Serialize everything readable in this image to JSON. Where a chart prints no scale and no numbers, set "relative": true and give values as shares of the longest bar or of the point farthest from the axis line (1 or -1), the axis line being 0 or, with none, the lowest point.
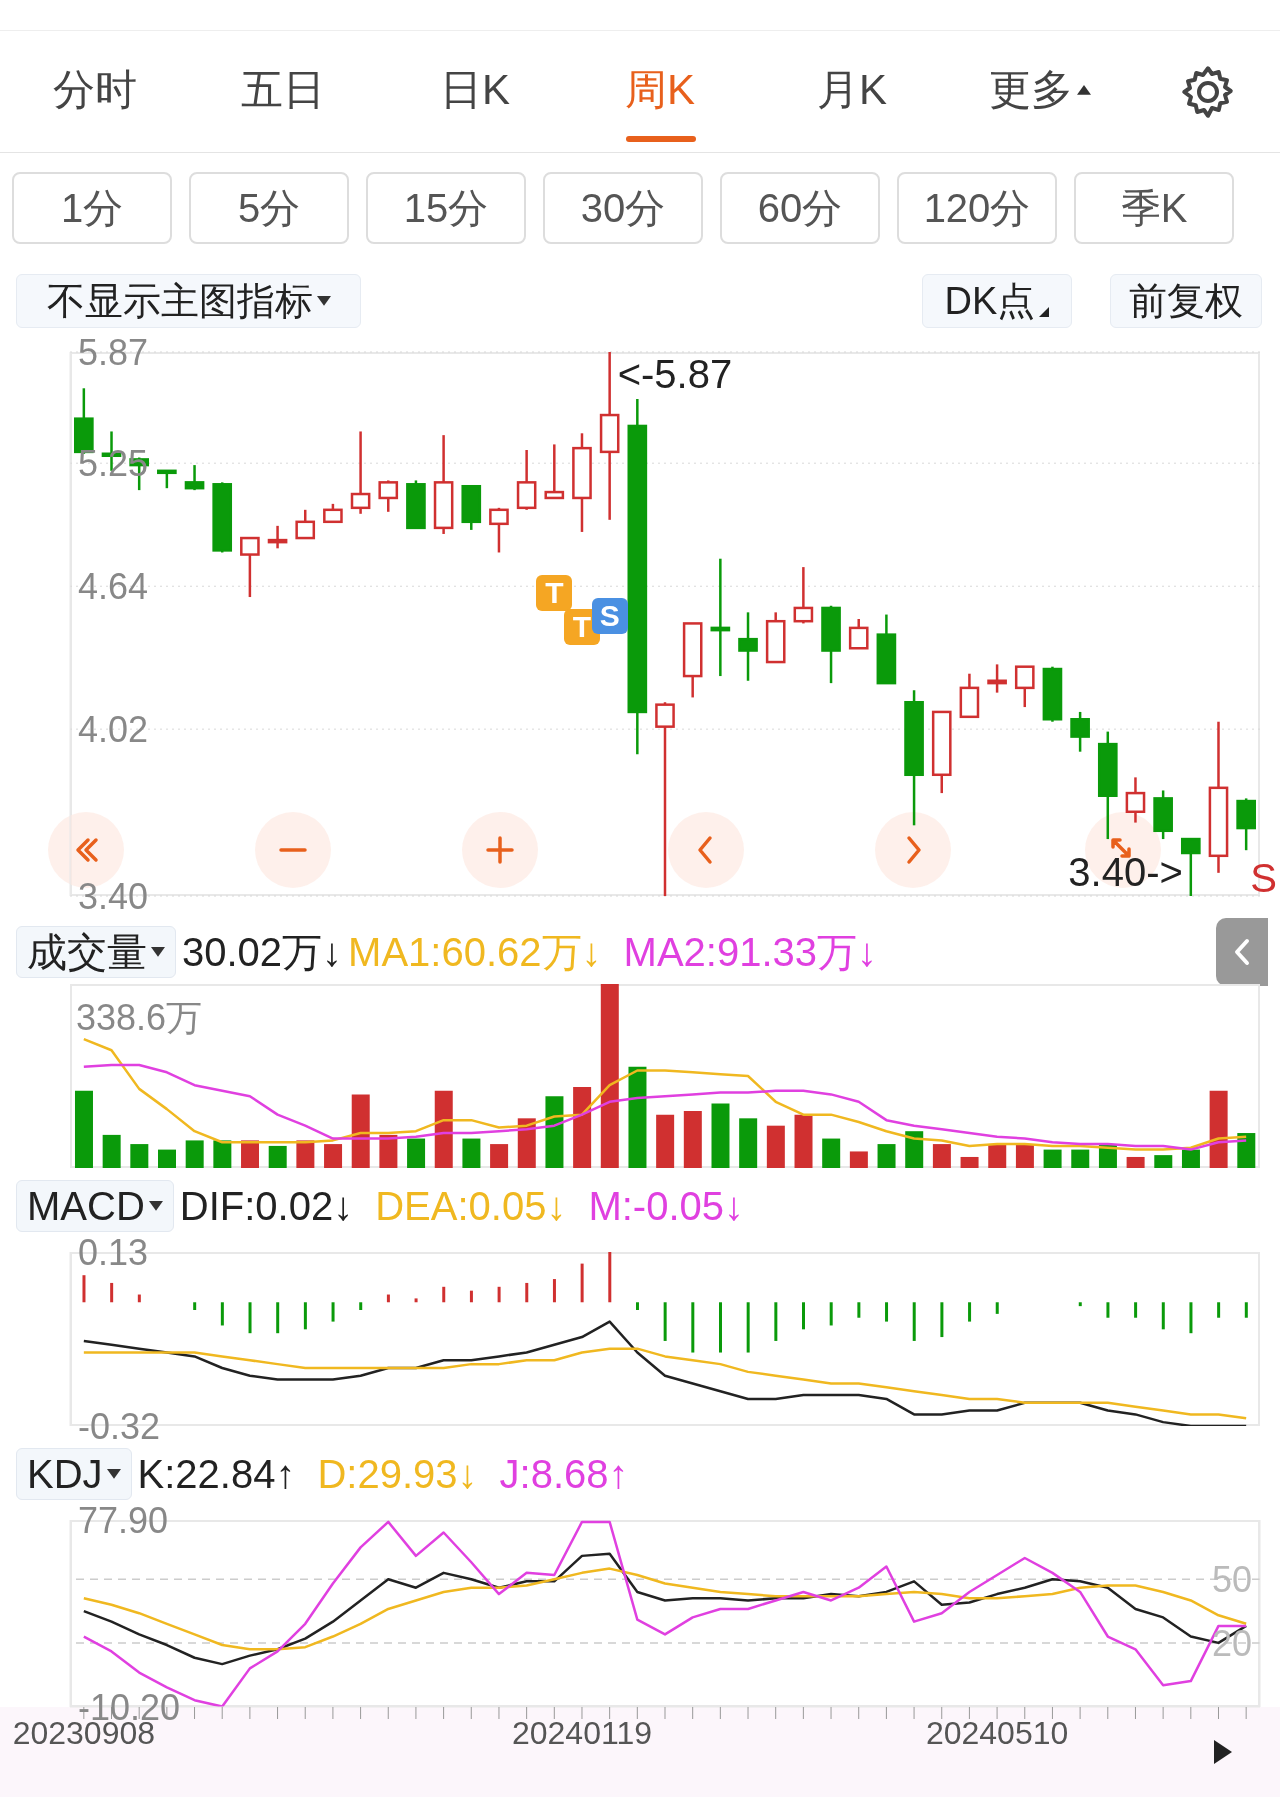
{
  "chart_data": [
    {
      "type": "other",
      "annotations": [
        "分时",
        "五日",
        "日K",
        "周K",
        "月K",
        "更多",
        "1分",
        "5分",
        "15分",
        "30分",
        "60分",
        "120分",
        "季K",
        "不显示主图指标",
        "DK点",
        "前复权"
      ]
    },
    {
      "type": "candlestick",
      "categories": [
        "20230908",
        null,
        null,
        null,
        null,
        null,
        null,
        null,
        null,
        null,
        null,
        null,
        null,
        null,
        null,
        null,
        null,
        null,
        "20240119",
        null,
        null,
        null,
        null,
        null,
        null,
        null,
        null,
        null,
        null,
        null,
        null,
        null,
        null,
        "20240510",
        null,
        null,
        null,
        null,
        null,
        null,
        null,
        null,
        null
      ],
      "ohlc": [
        [
          5.49,
          5.66,
          5.3,
          5.31
        ],
        [
          5.3,
          5.42,
          5.21,
          5.29
        ],
        [
          5.27,
          5.28,
          5.11,
          5.24
        ],
        [
          5.21,
          5.21,
          5.12,
          5.2
        ],
        [
          5.15,
          5.24,
          5.11,
          5.12
        ],
        [
          5.14,
          5.15,
          4.8,
          4.81
        ],
        [
          4.79,
          4.87,
          4.59,
          4.87
        ],
        [
          4.85,
          4.93,
          4.82,
          4.86
        ],
        [
          4.87,
          5.01,
          4.87,
          4.95
        ],
        [
          4.95,
          5.04,
          4.95,
          5.01
        ],
        [
          5.02,
          5.42,
          4.99,
          5.09
        ],
        [
          5.07,
          5.16,
          5.0,
          5.15
        ],
        [
          5.14,
          5.16,
          4.92,
          4.92
        ],
        [
          4.92,
          5.4,
          4.89,
          5.15
        ],
        [
          5.13,
          5.13,
          4.91,
          4.95
        ],
        [
          4.94,
          5.02,
          4.8,
          5.01
        ],
        [
          5.02,
          5.32,
          5.01,
          5.15
        ],
        [
          5.07,
          5.35,
          5.07,
          5.1
        ],
        [
          5.07,
          5.41,
          4.9,
          5.33
        ],
        [
          5.31,
          5.87,
          4.96,
          5.51
        ],
        [
          5.45,
          5.6,
          3.92,
          4.09
        ],
        [
          4.03,
          4.13,
          3.4,
          4.12
        ],
        [
          4.24,
          4.47,
          4.15,
          4.47
        ],
        [
          4.45,
          4.77,
          4.24,
          4.44
        ],
        [
          4.4,
          4.52,
          4.22,
          4.35
        ],
        [
          4.3,
          4.52,
          4.3,
          4.48
        ],
        [
          4.48,
          4.73,
          4.47,
          4.54
        ],
        [
          4.54,
          4.55,
          4.21,
          4.35
        ],
        [
          4.36,
          4.49,
          4.36,
          4.45
        ],
        [
          4.42,
          4.51,
          4.21,
          4.21
        ],
        [
          4.13,
          4.18,
          3.65,
          3.84
        ],
        [
          3.84,
          4.09,
          3.77,
          4.09
        ],
        [
          4.07,
          4.25,
          4.07,
          4.19
        ],
        [
          4.21,
          4.29,
          4.17,
          4.22
        ],
        [
          4.19,
          4.28,
          4.11,
          4.28
        ],
        [
          4.27,
          4.28,
          4.05,
          4.06
        ],
        [
          4.06,
          4.09,
          3.93,
          3.99
        ],
        [
          3.96,
          4.01,
          3.6,
          3.76
        ],
        [
          3.7,
          3.83,
          3.66,
          3.77
        ],
        [
          3.75,
          3.78,
          3.6,
          3.63
        ],
        [
          3.6,
          3.6,
          3.4,
          3.55
        ],
        [
          3.54,
          4.05,
          3.48,
          3.79
        ],
        [
          3.74,
          3.75,
          3.56,
          3.64
        ]
      ],
      "colors": [
        "#0a9a0a",
        "#0a9a0a",
        "#0a9a0a",
        "#0a9a0a",
        "#0a9a0a",
        "#0a9a0a",
        "#d03030",
        "#d03030",
        "#d03030",
        "#d03030",
        "#d03030",
        "#d03030",
        "#0a9a0a",
        "#d03030",
        "#0a9a0a",
        "#d03030",
        "#d03030",
        "#d03030",
        "#d03030",
        "#d03030",
        "#0a9a0a",
        "#d03030",
        "#d03030",
        "#0a9a0a",
        "#0a9a0a",
        "#d03030",
        "#d03030",
        "#0a9a0a",
        "#d03030",
        "#0a9a0a",
        "#0a9a0a",
        "#d03030",
        "#d03030",
        "#d03030",
        "#d03030",
        "#0a9a0a",
        "#0a9a0a",
        "#0a9a0a",
        "#d03030",
        "#0a9a0a",
        "#0a9a0a",
        "#d03030",
        "#0a9a0a"
      ],
      "ylim": [
        3.4,
        5.87
      ],
      "yticks": [
        5.87,
        5.25,
        4.64,
        4.02,
        {
          "value": 3.4,
          "label": "3.40"
        }
      ],
      "log": true,
      "grid": "y",
      "tick_labels": "y",
      "annotations": [
        "<-5.87",
        "3.40->",
        "T",
        "T",
        "S",
        "S"
      ]
    },
    {
      "type": "bar",
      "title": "成交量",
      "categories": [
        "20230908",
        null,
        null,
        null,
        null,
        null,
        null,
        null,
        null,
        null,
        null,
        null,
        null,
        null,
        null,
        null,
        null,
        null,
        "20240119",
        null,
        null,
        null,
        null,
        null,
        null,
        null,
        null,
        null,
        null,
        null,
        null,
        null,
        null,
        "20240510",
        null,
        null,
        null,
        null,
        null,
        null,
        null,
        null,
        null
      ],
      "relative": true,
      "legend": "top left",
      "tick_labels": false,
      "annotations": [
        "30.02万↓",
        "338.6万"
      ],
      "series": [
        {
          "type": "bar",
          "values": [
            0.42,
            0.18,
            0.13,
            0.1,
            0.15,
            0.15,
            0.15,
            0.12,
            0.15,
            0.13,
            0.4,
            0.18,
            0.16,
            0.42,
            0.16,
            0.13,
            0.27,
            0.39,
            0.44,
            1,
            0.55,
            0.29,
            0.31,
            0.35,
            0.27,
            0.23,
            0.29,
            0.16,
            0.09,
            0.13,
            0.2,
            0.13,
            0.06,
            0.13,
            0.13,
            0.1,
            0.1,
            0.13,
            0.06,
            0.07,
            0.1,
            0.42,
            0.19
          ],
          "colors": [
            "#0a9a0a",
            "#0a9a0a",
            "#0a9a0a",
            "#0a9a0a",
            "#0a9a0a",
            "#0a9a0a",
            "#d03030",
            "#0a9a0a",
            "#d03030",
            "#d03030",
            "#d03030",
            "#d03030",
            "#0a9a0a",
            "#d03030",
            "#0a9a0a",
            "#d03030",
            "#d03030",
            "#0a9a0a",
            "#d03030",
            "#d03030",
            "#0a9a0a",
            "#d03030",
            "#d03030",
            "#0a9a0a",
            "#0a9a0a",
            "#d03030",
            "#d03030",
            "#0a9a0a",
            "#d03030",
            "#0a9a0a",
            "#0a9a0a",
            "#d03030",
            "#d03030",
            "#d03030",
            "#d03030",
            "#0a9a0a",
            "#0a9a0a",
            "#0a9a0a",
            "#d03030",
            "#0a9a0a",
            "#0a9a0a",
            "#d03030",
            "#0a9a0a"
          ]
        },
        {
          "type": "line",
          "name": "MA1:60.62万↓",
          "color": "#f0b820",
          "values": [
            0.7,
            0.64,
            0.43,
            0.32,
            0.2,
            0.14,
            0.14,
            0.14,
            0.14,
            0.15,
            0.19,
            0.19,
            0.2,
            0.26,
            0.26,
            0.22,
            0.23,
            0.28,
            0.29,
            0.45,
            0.53,
            0.53,
            0.52,
            0.51,
            0.5,
            0.36,
            0.29,
            0.29,
            0.25,
            0.2,
            0.16,
            0.15,
            0.12,
            0.13,
            0.13,
            0.12,
            0.12,
            0.11,
            0.1,
            0.1,
            0.11,
            0.16,
            0.17
          ]
        },
        {
          "type": "line",
          "name": "MA2:91.33万↓",
          "color": "#e040e0",
          "values": [
            0.55,
            0.56,
            0.56,
            0.52,
            0.45,
            0.42,
            0.39,
            0.29,
            0.23,
            0.16,
            0.16,
            0.16,
            0.17,
            0.19,
            0.19,
            0.2,
            0.21,
            0.23,
            0.29,
            0.36,
            0.38,
            0.39,
            0.4,
            0.41,
            0.41,
            0.42,
            0.42,
            0.4,
            0.36,
            0.26,
            0.23,
            0.21,
            0.19,
            0.17,
            0.16,
            0.14,
            0.13,
            0.13,
            0.12,
            0.12,
            0.1,
            0.14,
            0.15
          ]
        }
      ]
    },
    {
      "type": "line",
      "title": "MACD",
      "categories": [
        "20230908",
        null,
        null,
        null,
        null,
        null,
        null,
        null,
        null,
        null,
        null,
        null,
        null,
        null,
        null,
        null,
        null,
        null,
        "20240119",
        null,
        null,
        null,
        null,
        null,
        null,
        null,
        null,
        null,
        null,
        null,
        null,
        null,
        null,
        "20240510",
        null,
        null,
        null,
        null,
        null,
        null,
        null,
        null,
        null
      ],
      "ylim": [
        -0.32,
        0.13
      ],
      "yticks": [
        0.13,
        -0.32
      ],
      "legend": "top left",
      "tick_labels": "y",
      "series": [
        {
          "type": "line",
          "name": "DIF:0.02↓",
          "color": "#222222",
          "values": [
            -0.1,
            -0.11,
            -0.12,
            -0.13,
            -0.14,
            -0.17,
            -0.19,
            -0.2,
            -0.2,
            -0.2,
            -0.19,
            -0.17,
            -0.17,
            -0.15,
            -0.15,
            -0.14,
            -0.13,
            -0.11,
            -0.09,
            -0.05,
            -0.13,
            -0.19,
            -0.21,
            -0.23,
            -0.25,
            -0.25,
            -0.24,
            -0.24,
            -0.24,
            -0.25,
            -0.29,
            -0.29,
            -0.28,
            -0.28,
            -0.26,
            -0.26,
            -0.26,
            -0.28,
            -0.29,
            -0.31,
            -0.32,
            -0.32,
            -0.32
          ]
        },
        {
          "type": "line",
          "name": "DEA:0.05↓",
          "color": "#f0b820",
          "values": [
            -0.13,
            -0.13,
            -0.13,
            -0.13,
            -0.13,
            -0.14,
            -0.15,
            -0.16,
            -0.17,
            -0.17,
            -0.17,
            -0.17,
            -0.17,
            -0.17,
            -0.16,
            -0.16,
            -0.15,
            -0.15,
            -0.13,
            -0.12,
            -0.12,
            -0.14,
            -0.15,
            -0.16,
            -0.18,
            -0.19,
            -0.2,
            -0.21,
            -0.21,
            -0.22,
            -0.23,
            -0.24,
            -0.25,
            -0.25,
            -0.26,
            -0.26,
            -0.26,
            -0.26,
            -0.27,
            -0.28,
            -0.29,
            -0.29,
            -0.3
          ]
        },
        {
          "type": "bar",
          "name": "M:-0.05↓",
          "color": "#e040e0",
          "values": [
            0.07,
            0.05,
            0.02,
            0.0,
            -0.02,
            -0.06,
            -0.08,
            -0.08,
            -0.07,
            -0.05,
            -0.02,
            0.02,
            0.01,
            0.04,
            0.03,
            0.04,
            0.05,
            0.06,
            0.1,
            0.13,
            -0.02,
            -0.1,
            -0.13,
            -0.13,
            -0.13,
            -0.1,
            -0.07,
            -0.06,
            -0.04,
            -0.05,
            -0.1,
            -0.09,
            -0.05,
            -0.03,
            0.0,
            0.0,
            -0.01,
            -0.04,
            -0.04,
            -0.07,
            -0.08,
            -0.04,
            -0.04
          ],
          "colors": [
            "#d03030",
            "#d03030",
            "#d03030",
            "#d03030",
            "#0a9a0a",
            "#0a9a0a",
            "#0a9a0a",
            "#0a9a0a",
            "#0a9a0a",
            "#0a9a0a",
            "#0a9a0a",
            "#d03030",
            "#d03030",
            "#d03030",
            "#d03030",
            "#d03030",
            "#d03030",
            "#d03030",
            "#d03030",
            "#d03030",
            "#0a9a0a",
            "#0a9a0a",
            "#0a9a0a",
            "#0a9a0a",
            "#0a9a0a",
            "#0a9a0a",
            "#0a9a0a",
            "#0a9a0a",
            "#0a9a0a",
            "#0a9a0a",
            "#0a9a0a",
            "#0a9a0a",
            "#0a9a0a",
            "#0a9a0a",
            "#0a9a0a",
            "#0a9a0a",
            "#0a9a0a",
            "#0a9a0a",
            "#0a9a0a",
            "#0a9a0a",
            "#0a9a0a",
            "#0a9a0a",
            "#0a9a0a"
          ]
        }
      ]
    },
    {
      "type": "line",
      "title": "KDJ",
      "categories": [
        "20230908",
        null,
        null,
        null,
        null,
        null,
        null,
        null,
        null,
        null,
        null,
        null,
        null,
        null,
        null,
        null,
        null,
        null,
        "20240119",
        null,
        null,
        null,
        null,
        null,
        null,
        null,
        null,
        null,
        null,
        null,
        null,
        null,
        null,
        "20240510",
        null,
        null,
        null,
        null,
        null,
        null,
        null,
        null,
        null
      ],
      "ylim": [
        -10.2,
        77.9
      ],
      "yticks": [
        {
          "value": 77.9,
          "label": "77.90"
        },
        {
          "value": -10.2,
          "label": "-10.20"
        }
      ],
      "y2lim": [
        -10.2,
        77.9
      ],
      "y2ticks": [
        20,
        50
      ],
      "legend": "top left",
      "ref_lines": [
        {
          "axis": "y2",
          "value": 20,
          "color": "#cccccc",
          "line_style": "dashed"
        },
        {
          "axis": "y2",
          "value": 50,
          "color": "#cccccc",
          "line_style": "dashed"
        }
      ],
      "series": [
        {
          "name": "K:22.84↑",
          "color": "#222222",
          "values": [
            35,
            30,
            24,
            19,
            13,
            10,
            14,
            17,
            22,
            30,
            40,
            50,
            46,
            53,
            50,
            46,
            49,
            49,
            61,
            62,
            44,
            40,
            41,
            41,
            40,
            41,
            41,
            43,
            42,
            44,
            49,
            38,
            39,
            43,
            46,
            50,
            49,
            46,
            36,
            32,
            23,
            20,
            28
          ]
        },
        {
          "name": "D:29.93↓",
          "color": "#f0b820",
          "values": [
            41,
            38,
            34,
            29,
            24,
            19,
            17,
            17,
            18,
            23,
            29,
            36,
            40,
            44,
            46,
            46,
            47,
            50,
            53,
            55,
            52,
            48,
            46,
            44,
            43,
            42,
            42,
            42,
            42,
            43,
            44,
            43,
            41,
            41,
            42,
            43,
            46,
            47,
            47,
            44,
            40,
            33,
            29
          ]
        },
        {
          "name": "J:8.68↑",
          "color": "#e040e0",
          "values": [
            23,
            16,
            6,
            -1,
            -7,
            -10,
            8,
            16,
            29,
            48,
            65,
            77,
            61,
            72,
            58,
            43,
            53,
            52,
            77,
            77,
            31,
            24,
            32,
            36,
            36,
            40,
            44,
            40,
            46,
            56,
            30,
            34,
            44,
            52,
            60,
            53,
            44,
            23,
            17,
            0,
            2,
            28,
            28
          ]
        }
      ]
    }
  ]
}
